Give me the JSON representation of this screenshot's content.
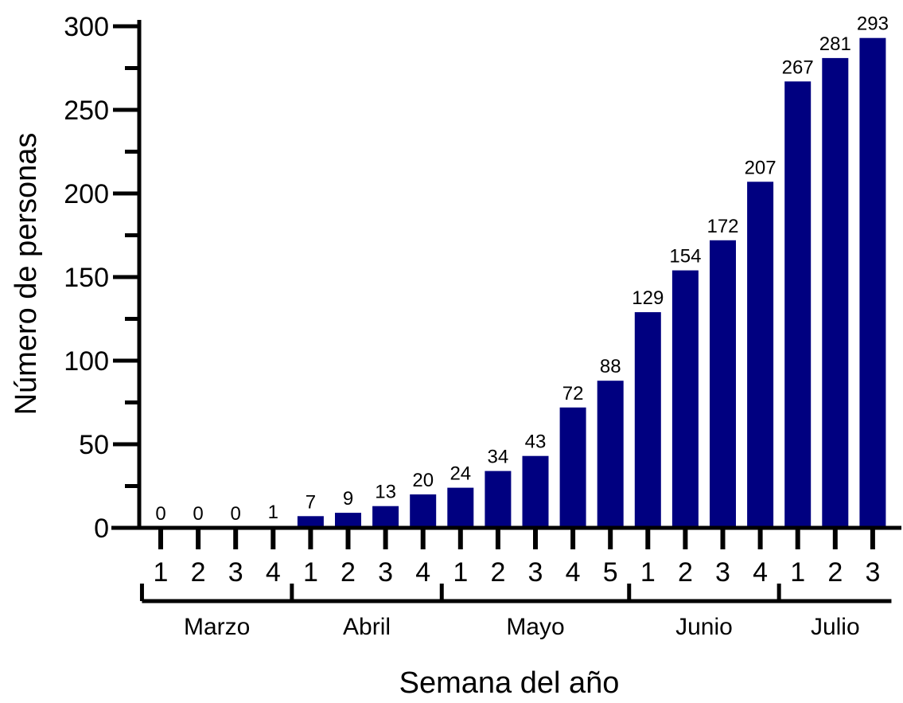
{
  "chart_data": {
    "type": "bar",
    "title": "",
    "xlabel": "Semana del año",
    "ylabel": "Número de personas",
    "ylim": [
      0,
      300
    ],
    "yticks": [
      0,
      50,
      100,
      150,
      200,
      250,
      300
    ],
    "grid": false,
    "bar_color": "#000080",
    "categories": [
      "1",
      "2",
      "3",
      "4",
      "1",
      "2",
      "3",
      "4",
      "1",
      "2",
      "3",
      "4",
      "5",
      "1",
      "2",
      "3",
      "4",
      "1",
      "2",
      "3"
    ],
    "values": [
      0,
      0,
      0,
      1,
      7,
      9,
      13,
      20,
      24,
      34,
      43,
      72,
      88,
      129,
      154,
      172,
      207,
      267,
      281,
      293
    ],
    "groups": [
      {
        "label": "Marzo",
        "start": 0,
        "end": 3
      },
      {
        "label": "Abril",
        "start": 4,
        "end": 7
      },
      {
        "label": "Mayo",
        "start": 8,
        "end": 12
      },
      {
        "label": "Junio",
        "start": 13,
        "end": 16
      },
      {
        "label": "Julio",
        "start": 17,
        "end": 19
      }
    ]
  }
}
